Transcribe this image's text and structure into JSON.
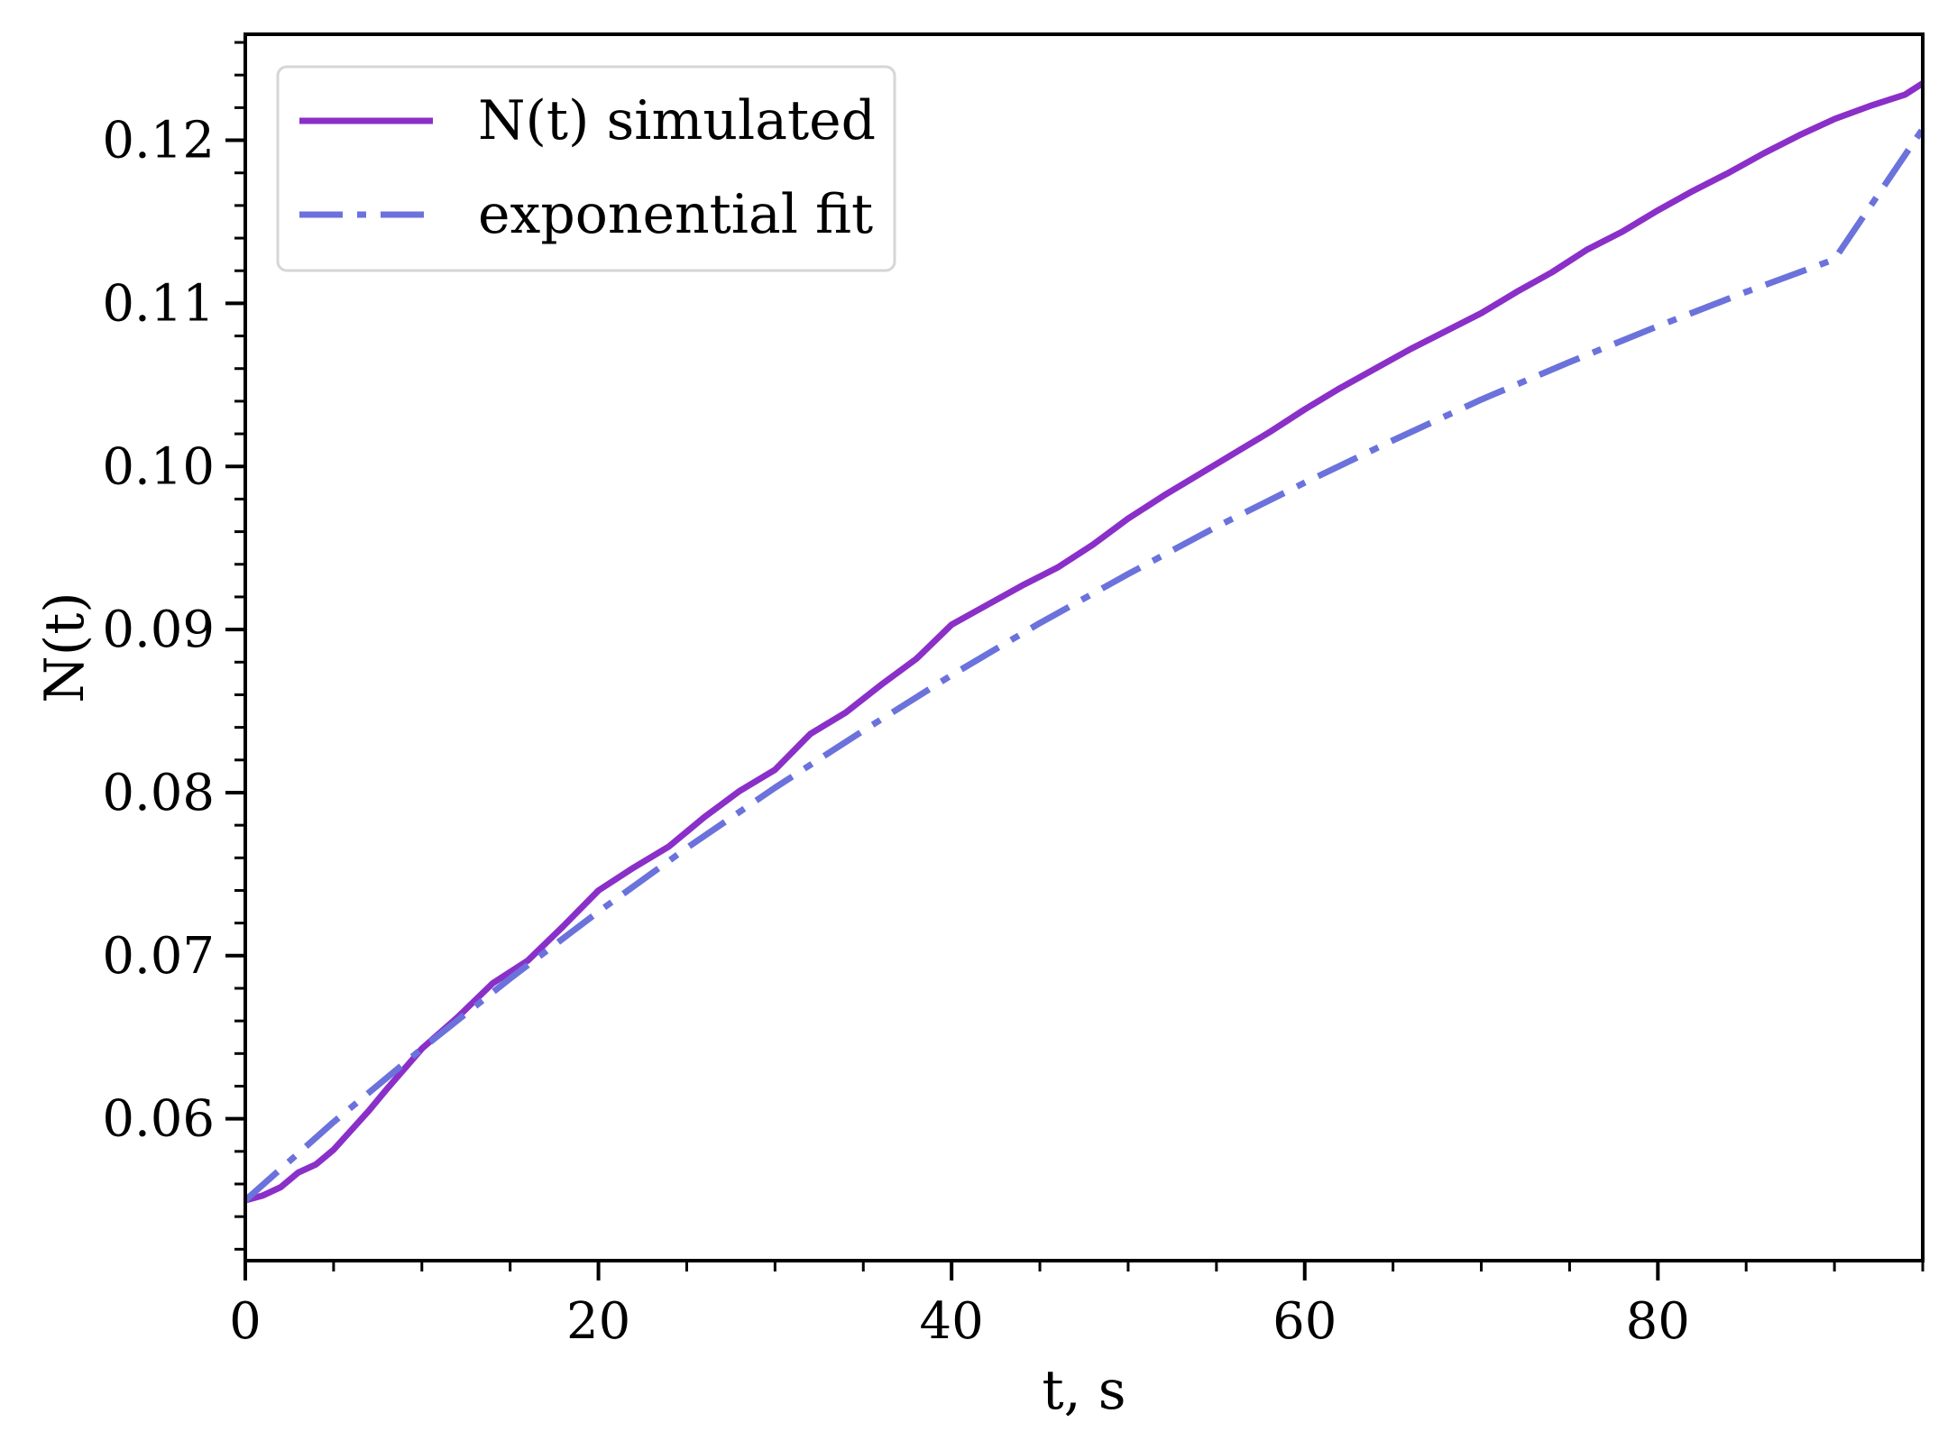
{
  "chart_data": {
    "type": "line",
    "title": "",
    "xlabel": "t, s",
    "ylabel": "N(t)",
    "xlim": [
      0,
      95
    ],
    "ylim": [
      0.0513,
      0.1265
    ],
    "x_ticks": [
      0,
      20,
      40,
      60,
      80
    ],
    "x_tick_labels": [
      "0",
      "20",
      "40",
      "60",
      "80"
    ],
    "x_minor_step": 5,
    "y_ticks": [
      0.06,
      0.07,
      0.08,
      0.09,
      0.1,
      0.11,
      0.12
    ],
    "y_tick_labels": [
      "0.06",
      "0.07",
      "0.08",
      "0.09",
      "0.10",
      "0.11",
      "0.12"
    ],
    "y_minor_step": 0.002,
    "grid": false,
    "legend_position": "top-left",
    "series": [
      {
        "name": "N(t) simulated",
        "color": "#8b2fc9",
        "style": "solid",
        "x": [
          0,
          1,
          2,
          3,
          4,
          5,
          6,
          7,
          8,
          10,
          12,
          14,
          16,
          18,
          20,
          22,
          24,
          26,
          28,
          30,
          32,
          34,
          36,
          38,
          40,
          42,
          44,
          46,
          48,
          50,
          52,
          54,
          56,
          58,
          60,
          62,
          64,
          66,
          68,
          70,
          72,
          74,
          76,
          78,
          80,
          82,
          84,
          86,
          88,
          90,
          92,
          94,
          95
        ],
        "y": [
          0.055,
          0.0553,
          0.0558,
          0.0567,
          0.0572,
          0.0581,
          0.0593,
          0.0605,
          0.0618,
          0.0643,
          0.0662,
          0.0683,
          0.0697,
          0.0718,
          0.074,
          0.0754,
          0.0767,
          0.0785,
          0.0801,
          0.0814,
          0.0836,
          0.0849,
          0.0866,
          0.0882,
          0.0903,
          0.0915,
          0.0927,
          0.0938,
          0.0952,
          0.0968,
          0.0982,
          0.0995,
          0.1008,
          0.1021,
          0.1035,
          0.1048,
          0.106,
          0.1072,
          0.1083,
          0.1094,
          0.1107,
          0.1119,
          0.1133,
          0.1144,
          0.1157,
          0.1169,
          0.118,
          0.1192,
          0.1203,
          0.1213,
          0.1221,
          0.1228,
          0.1235
        ]
      },
      {
        "name": "exponential fit",
        "color": "#6b72dc",
        "style": "dashdot",
        "x": [
          0,
          5,
          10,
          15,
          20,
          25,
          30,
          35,
          40,
          45,
          50,
          55,
          60,
          65,
          70,
          75,
          80,
          85,
          90,
          95
        ],
        "y": [
          0.055,
          0.0598,
          0.0643,
          0.0686,
          0.0727,
          0.0766,
          0.0803,
          0.0838,
          0.0872,
          0.0904,
          0.0934,
          0.0963,
          0.099,
          0.1016,
          0.1041,
          0.1064,
          0.1086,
          0.1107,
          0.1127,
          0.1207
        ]
      }
    ]
  }
}
